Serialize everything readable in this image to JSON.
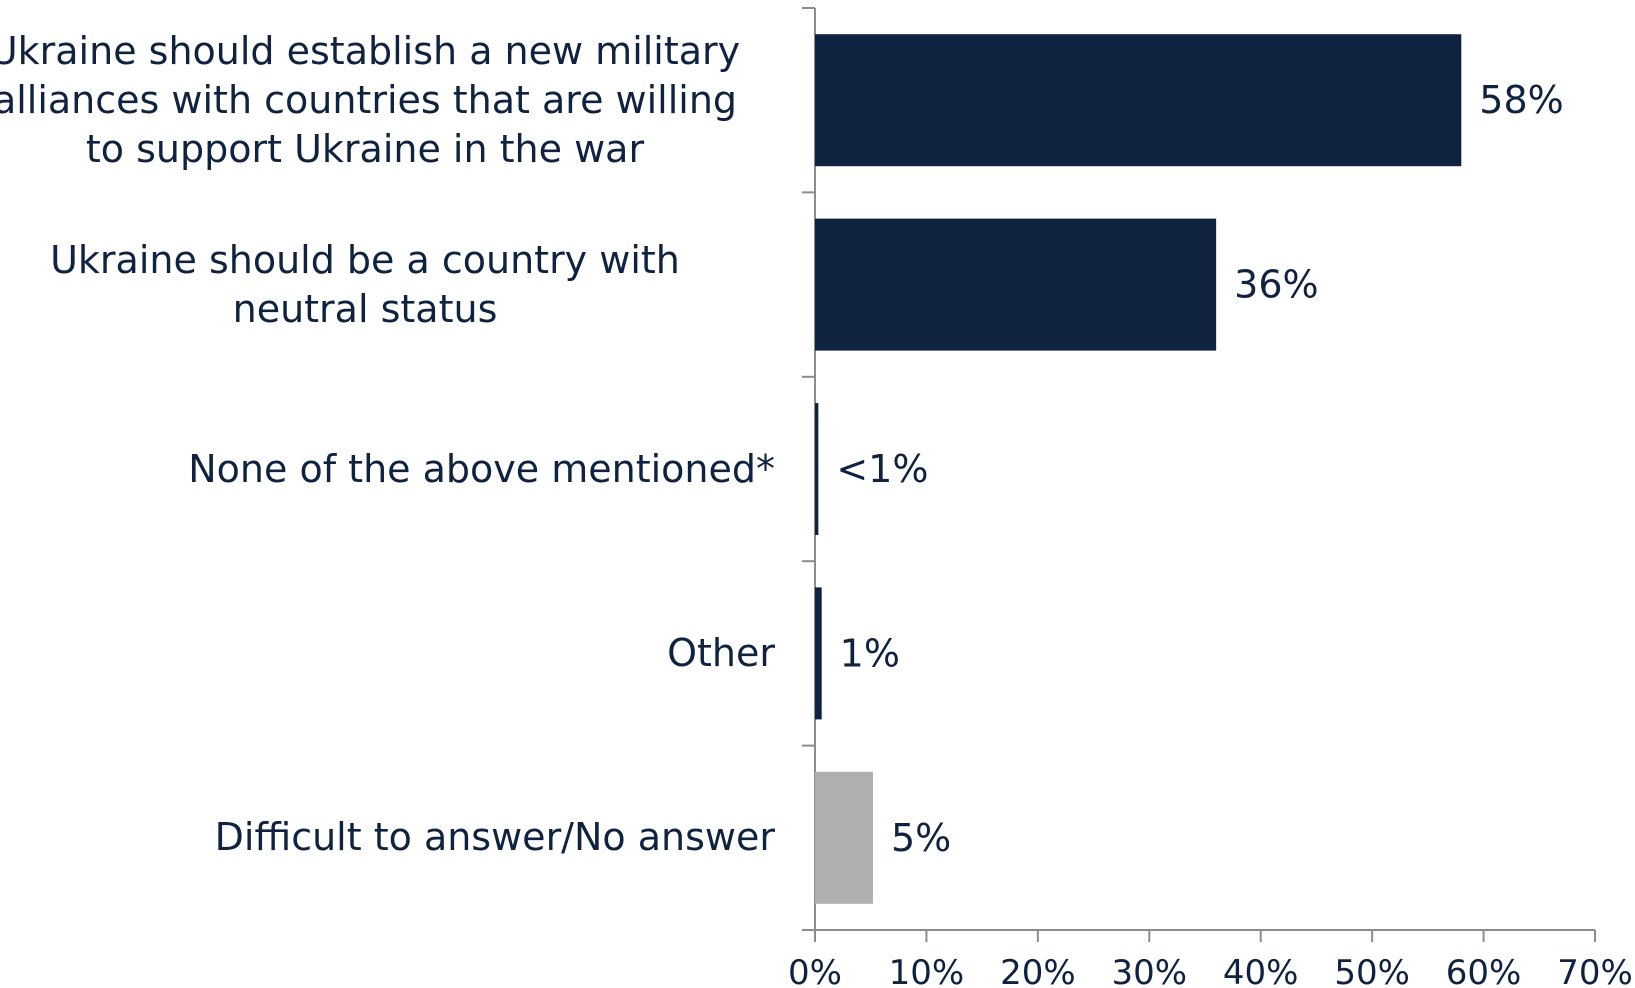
{
  "chart_data": {
    "type": "bar",
    "orientation": "horizontal",
    "title": "",
    "xlabel": "",
    "ylabel": "",
    "categories": [
      [
        "Ukraine should establish a new military",
        "alliances with countries that are willing",
        "to support Ukraine in the war"
      ],
      [
        "Ukraine should be a country with",
        "neutral status"
      ],
      [
        "None of the above mentioned*"
      ],
      [
        "Other"
      ],
      [
        "Difficult to answer/No answer"
      ]
    ],
    "values": [
      58,
      36,
      0.3,
      0.6,
      5.2
    ],
    "data_labels": [
      "58%",
      "36%",
      "<1%",
      "1%",
      "5%"
    ],
    "bar_colors": [
      "#0f2341",
      "#0f2341",
      "#0f2341",
      "#0f2341",
      "#afafb0"
    ],
    "xlim": [
      0,
      70
    ],
    "xticks": [
      0,
      10,
      20,
      30,
      40,
      50,
      60,
      70
    ],
    "xtick_labels": [
      "0%",
      "10%",
      "20%",
      "30%",
      "40%",
      "50%",
      "60%",
      "70%"
    ],
    "grid": false,
    "legend": "none"
  }
}
